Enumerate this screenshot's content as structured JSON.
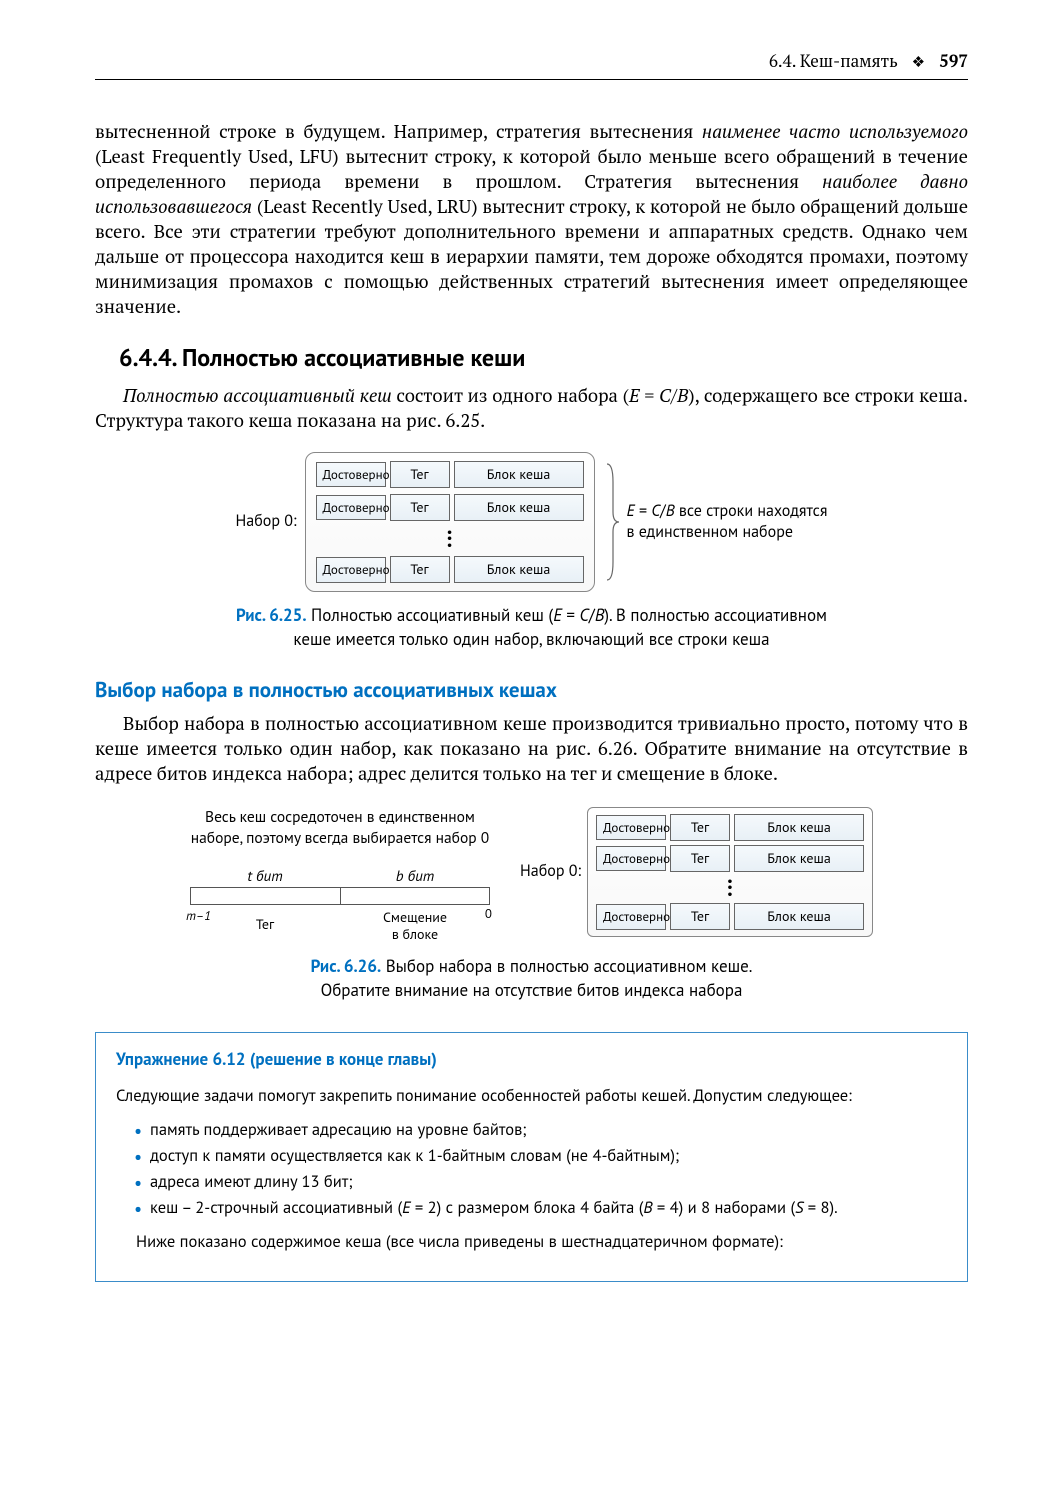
{
  "header": {
    "section": "6.4. Кеш-память",
    "sep": "❖",
    "page": "597"
  },
  "para1_html": "вытесненной строке в будущем. Например, стратегия вытеснения <span class='italic'>наименее часто ис­пользуемого</span> (Least Frequently Used, LFU) вытеснит строку, к которой было меньше всего обращений в течение определенного периода времени в прошлом. Стратегия вытес­нения <span class='italic'>наиболее давно использовавшегося</span> (Least Recently Used, LRU) вытеснит строку, к которой не было обращений дольше всего. Все эти стратегии требуют дополнительно­го времени и аппаратных средств. Однако чем дальше от процессора находится кеш в иерархии памяти, тем дороже обходятся промахи, поэтому минимизация промахов с помощью действенных стратегий вытеснения имеет определяющее значение.",
  "h_644": "6.4.4. Полностью ассоциативные кеши",
  "para2_html": "<span class='italic'>Полностью ассоциативный кеш</span> состоит из одного набора (<span class='italic'>E</span> = <span class='italic'>C</span>/<span class='italic'>B</span>), содержащего все строки кеша. Структура такого кеша показана на рис. 6.25.",
  "fig625": {
    "set_label": "Набор 0:",
    "valid": "Достоверно",
    "tag": "Тег",
    "block": "Блок кеша",
    "side_html": "<span class='italic'>E</span> = <span class='italic'>C</span>/<span class='italic'>B</span> все строки находятся<br>в единственном наборе",
    "caption_html": "<span class='fig-label'>Рис. 6.25.</span> Полностью ассоциативный кеш (<span class='ital'>E</span> = <span class='ital'>C</span>/<span class='ital'>B</span>). В полностью ассоциативном<br>кеше имеется только один набор, включающий все строки кеша"
  },
  "h_sel": "Выбор набора в полностью ассоциативных кешах",
  "para3": "Выбор набора в полностью ассоциативном кеше производится тривиально просто, потому что в кеше имеется только один набор, как показано на рис. 6.26. Обратите вни­мание на отсутствие в адресе битов индекса набора; адрес делится только на тег и сме­щение в блоке.",
  "fig626": {
    "left_text": "Весь кеш сосредоточен в единственном наборе, поэтому всегда выбирается набор 0",
    "t_bits_html": "<span class='italic'>t</span> бит",
    "b_bits_html": "<span class='italic'>b</span> бит",
    "m1_html": "<span class='italic'>m</span>–1",
    "tag_label": "Тег",
    "offset_label": "Смещение<br>в блоке",
    "zero": "0",
    "set_label": "Набор 0:",
    "valid": "Достоверно",
    "tag": "Тег",
    "block": "Блок кеша",
    "caption_html": "<span class='fig-label'>Рис. 6.26.</span> Выбор набора в полностью ассоциативном кеше.<br>Обратите внимание на отсутствие битов индекса набора"
  },
  "exercise": {
    "title": "Упражнение 6.12 (решение в конце главы)",
    "intro": "Следующие задачи помогут закрепить понимание особенностей работы кешей. Допустим следующее:",
    "items": [
      "память поддерживает адресацию на уровне байтов;",
      "доступ к памяти осуществляется как к 1-байтным словам (не 4-байтным);",
      "адреса имеют длину 13 бит;"
    ],
    "item4_html": "кеш – 2-строчный ассоциативный (<span class='ital'>E</span> = 2) с размером блока 4 байта (<span class='ital'>B</span> = 4) и 8 наборами (<span class='ital'>S</span> = 8).",
    "outro": "Ниже показано содержимое кеша (все числа приведены в шестнадцатеричном формате):"
  }
}
